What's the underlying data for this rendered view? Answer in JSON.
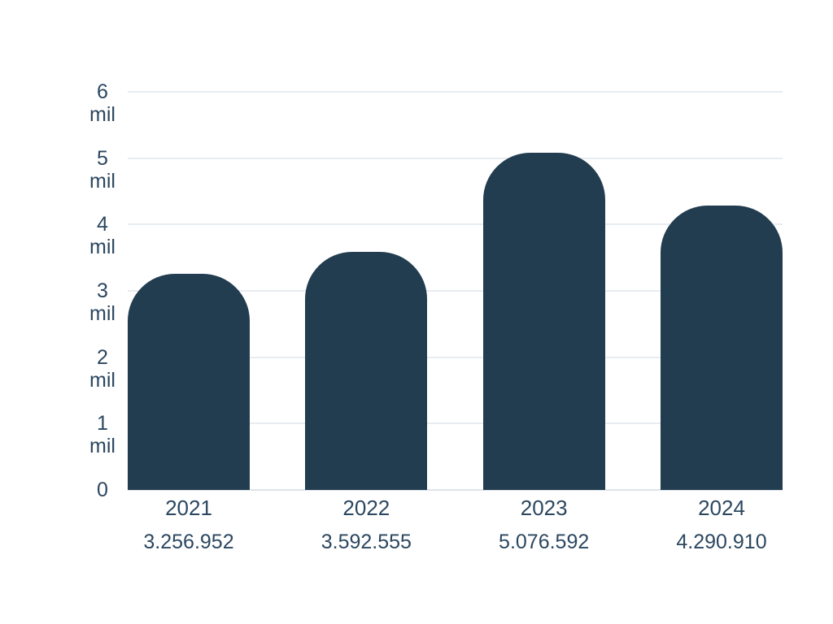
{
  "chart_data": {
    "type": "bar",
    "title": "",
    "categories": [
      "2021",
      "2022",
      "2023",
      "2024"
    ],
    "values": [
      3256952,
      3592555,
      5076592,
      4290910
    ],
    "value_labels": [
      "3.256.952",
      "3.592.555",
      "5.076.592",
      "4.290.910"
    ],
    "ylim": [
      0,
      6000000
    ],
    "y_ticks": [
      {
        "value": 6000000,
        "label": "6",
        "unit": "mil"
      },
      {
        "value": 5000000,
        "label": "5",
        "unit": "mil"
      },
      {
        "value": 4000000,
        "label": "4",
        "unit": "mil"
      },
      {
        "value": 3000000,
        "label": "3",
        "unit": "mil"
      },
      {
        "value": 2000000,
        "label": "2",
        "unit": "mil"
      },
      {
        "value": 1000000,
        "label": "1",
        "unit": "mil"
      },
      {
        "value": 0,
        "label": "0",
        "unit": ""
      }
    ],
    "grid": true,
    "legend": "none",
    "colors": {
      "bar": "#223D50",
      "axis_text": "#2b4760",
      "gridline": "#e8ecf0",
      "baseline": "#dde4ea",
      "background": "#ffffff"
    }
  }
}
